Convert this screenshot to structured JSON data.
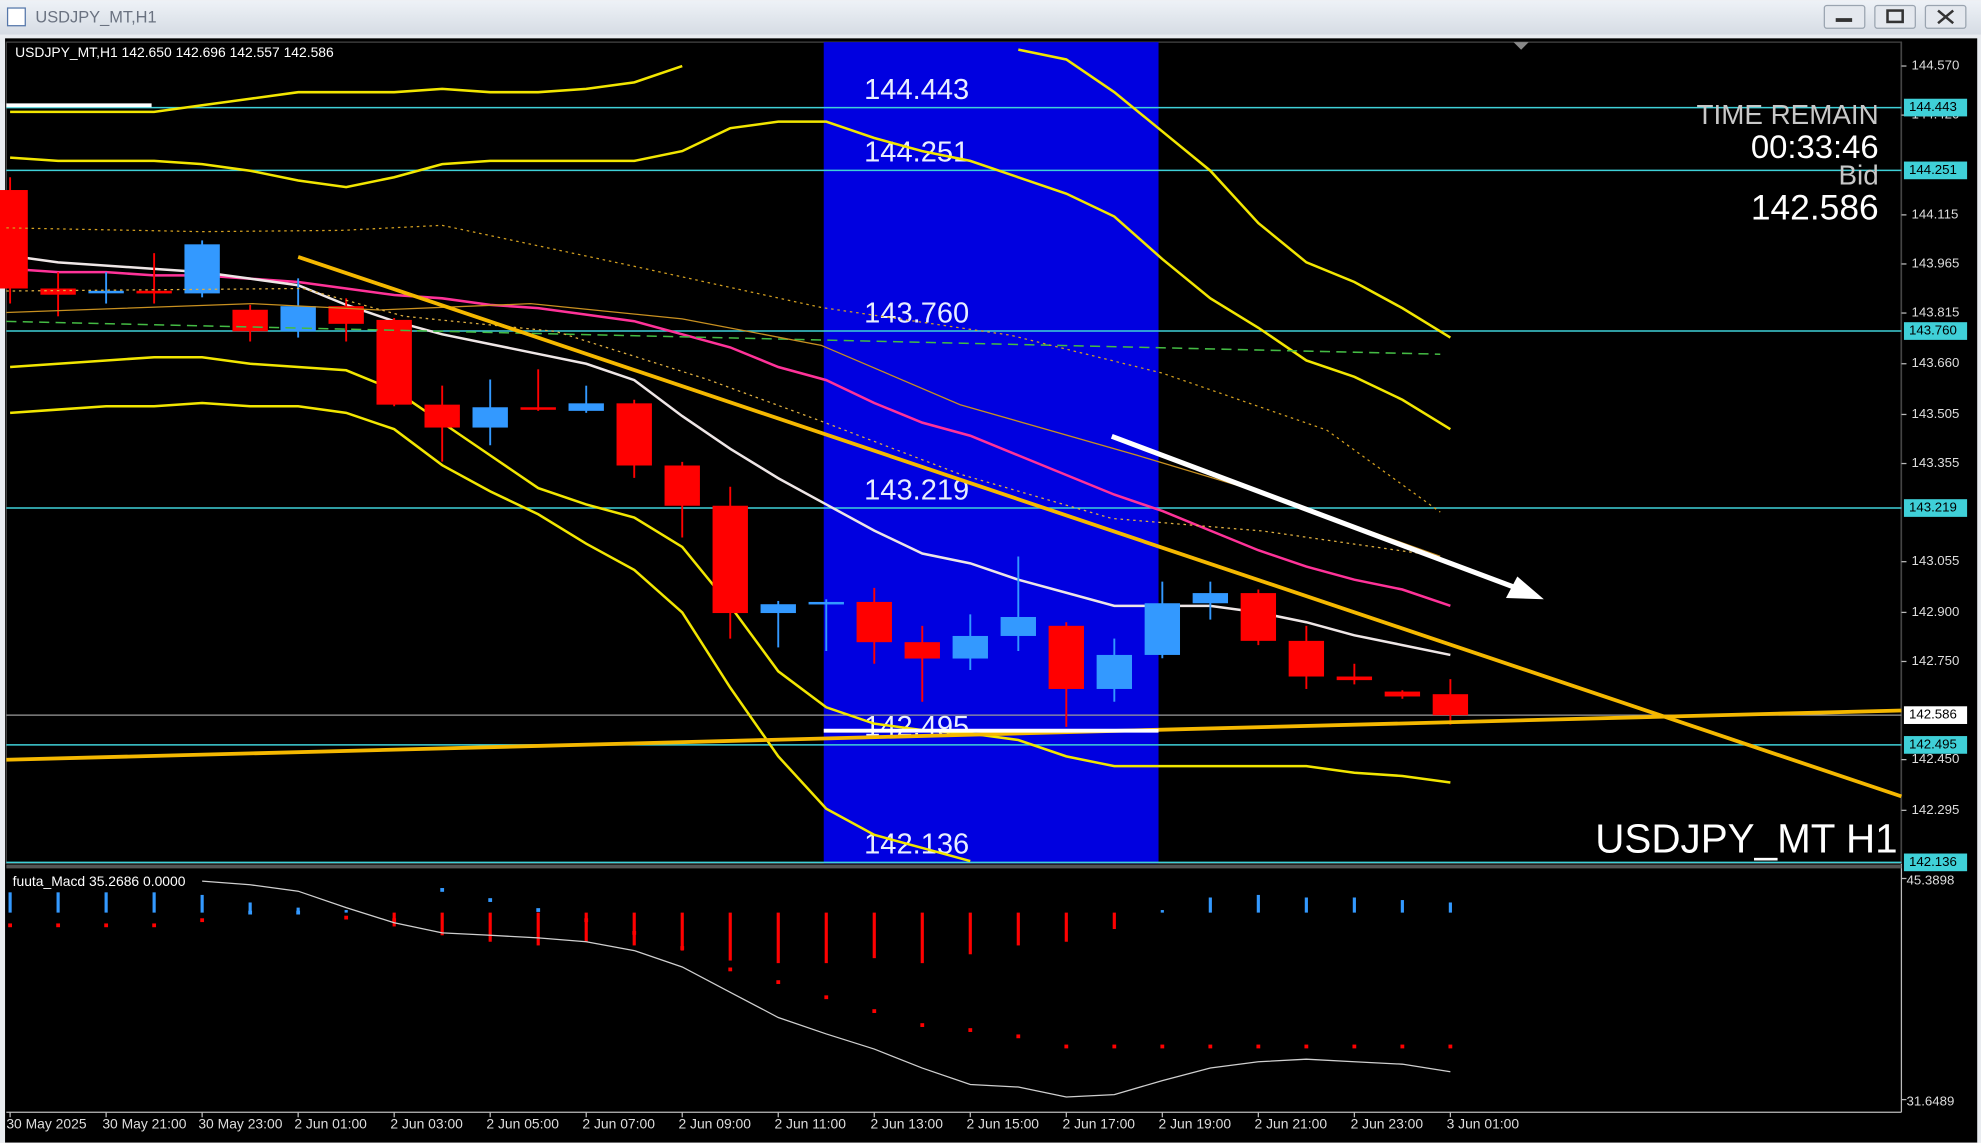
{
  "window": {
    "title": "USDJPY_MT,H1"
  },
  "chart_data": {
    "type": "candlestick",
    "info": "USDJPY_MT,H1  142.650 142.696 142.557 142.586",
    "categories": [
      "30 May 2025",
      null,
      "30 May 21:00",
      null,
      "30 May 23:00",
      null,
      "2 Jun 01:00",
      null,
      "2 Jun 03:00",
      null,
      "2 Jun 05:00",
      null,
      "2 Jun 07:00",
      null,
      "2 Jun 09:00",
      null,
      "2 Jun 11:00",
      null,
      "2 Jun 13:00",
      null,
      "2 Jun 15:00",
      null,
      "2 Jun 17:00",
      null,
      "2 Jun 19:00",
      null,
      "2 Jun 21:00",
      null,
      "2 Jun 23:00",
      null,
      "3 Jun 01:00"
    ],
    "open": [
      144.191,
      143.89,
      143.879,
      143.883,
      143.875,
      143.825,
      143.759,
      143.836,
      143.794,
      143.535,
      143.465,
      143.527,
      143.516,
      143.539,
      143.349,
      143.226,
      142.898,
      142.925,
      142.932,
      142.809,
      142.759,
      142.828,
      142.859,
      142.666,
      142.77,
      142.928,
      142.959,
      142.813,
      142.704,
      142.658,
      142.65
    ],
    "high": [
      144.23,
      143.94,
      143.94,
      143.998,
      144.037,
      143.84,
      143.921,
      143.86,
      143.8,
      143.593,
      143.612,
      143.643,
      143.593,
      143.55,
      143.36,
      143.284,
      142.935,
      142.94,
      142.975,
      142.859,
      142.894,
      143.071,
      142.87,
      142.82,
      142.994,
      142.994,
      142.97,
      142.859,
      142.743,
      142.662,
      142.696
    ],
    "low": [
      143.844,
      143.805,
      143.844,
      143.844,
      143.863,
      143.728,
      143.74,
      143.728,
      143.53,
      143.361,
      143.411,
      143.516,
      143.51,
      143.311,
      143.129,
      142.82,
      142.793,
      142.782,
      142.743,
      142.627,
      142.724,
      142.782,
      142.55,
      142.627,
      142.76,
      142.878,
      142.8,
      142.666,
      142.68,
      142.636,
      142.557
    ],
    "close": [
      143.89,
      143.871,
      143.883,
      143.875,
      144.025,
      143.759,
      143.836,
      143.782,
      143.535,
      143.465,
      143.527,
      143.523,
      143.539,
      143.349,
      143.226,
      142.898,
      142.925,
      142.932,
      142.809,
      142.759,
      142.828,
      142.886,
      142.666,
      142.77,
      142.928,
      142.959,
      142.813,
      142.704,
      142.693,
      142.643,
      142.586
    ],
    "up_color": "#3399ff",
    "down_color": "#ff0000",
    "ylim": [
      142.133,
      144.643
    ],
    "yticks": [
      {
        "value": 144.57,
        "label": "144.570"
      },
      {
        "value": 144.42,
        "label": "144.420"
      },
      144.115,
      143.965,
      143.815,
      {
        "value": 143.66,
        "label": "143.660"
      },
      143.505,
      143.355,
      143.055,
      {
        "value": 142.9,
        "label": "142.900"
      },
      {
        "value": 142.75,
        "label": "142.750"
      },
      {
        "value": 142.45,
        "label": "142.450"
      },
      142.295
    ],
    "levels": [
      144.443,
      144.251,
      {
        "value": 143.76,
        "label": "143.760"
      },
      143.219,
      142.495,
      142.136
    ],
    "level_color": "#3fd0d8",
    "bid": 142.586,
    "time_remain_label": "TIME REMAIN",
    "time_remain": "00:33:46",
    "bid_label": "Bid",
    "watermark": "USDJPY_MT H1",
    "bands": [
      {
        "color": "#f2e600",
        "values": [
          144.43,
          144.43,
          144.43,
          144.43,
          144.45,
          144.47,
          144.49,
          144.49,
          144.49,
          144.5,
          144.49,
          144.49,
          144.5,
          144.52,
          144.57,
          null,
          null,
          null,
          null,
          null,
          null,
          144.62,
          144.59,
          144.49,
          144.37,
          144.25,
          144.09,
          143.97,
          143.91,
          143.83,
          143.74
        ]
      },
      {
        "color": "#f2e600",
        "values": [
          144.29,
          144.28,
          144.28,
          144.28,
          144.27,
          144.25,
          144.22,
          144.2,
          144.23,
          144.27,
          144.28,
          144.28,
          144.28,
          144.28,
          144.31,
          144.38,
          144.4,
          144.4,
          144.35,
          144.31,
          144.28,
          144.23,
          144.18,
          144.11,
          143.98,
          143.86,
          143.77,
          143.67,
          143.62,
          143.55,
          143.46
        ]
      },
      {
        "color": "#f2e600",
        "values": [
          143.65,
          143.66,
          143.67,
          143.68,
          143.68,
          143.66,
          143.65,
          143.64,
          143.58,
          143.48,
          143.38,
          143.28,
          143.23,
          143.19,
          143.1,
          142.92,
          142.72,
          142.61,
          142.56,
          142.54,
          142.53,
          142.51,
          142.46,
          142.43,
          142.43,
          142.43,
          142.43,
          142.43,
          142.41,
          142.4,
          142.38
        ]
      },
      {
        "color": "#f2e600",
        "values": [
          143.51,
          143.52,
          143.53,
          143.53,
          143.54,
          143.53,
          143.53,
          143.51,
          143.46,
          143.35,
          143.27,
          143.2,
          143.11,
          143.03,
          142.9,
          142.67,
          142.46,
          142.3,
          142.22,
          142.18,
          142.14,
          null,
          null,
          null,
          null,
          null,
          null,
          null,
          null,
          null,
          null
        ]
      },
      {
        "color": "#ff3399",
        "values": [
          143.95,
          143.94,
          143.94,
          143.93,
          143.93,
          143.92,
          143.91,
          143.89,
          143.87,
          143.86,
          143.84,
          143.83,
          143.81,
          143.79,
          143.75,
          143.71,
          143.65,
          143.61,
          143.54,
          143.48,
          143.44,
          143.38,
          143.32,
          143.26,
          143.21,
          143.15,
          143.09,
          143.04,
          143.0,
          142.97,
          142.92
        ]
      },
      {
        "color": "#eee6e6",
        "values": [
          143.99,
          143.97,
          143.96,
          143.95,
          143.94,
          143.92,
          143.9,
          143.84,
          143.79,
          143.75,
          143.72,
          143.69,
          143.66,
          143.61,
          143.5,
          143.4,
          143.31,
          143.23,
          143.15,
          143.08,
          143.05,
          143.0,
          142.96,
          142.92,
          142.92,
          142.92,
          142.9,
          142.87,
          142.83,
          142.8,
          142.77
        ]
      }
    ],
    "macd": {
      "label": "fuuta_Macd 35.2686  0.0000",
      "ylim": [
        31.6489,
        45.3898
      ],
      "yticks": [
        45.3898,
        31.6489
      ],
      "histogram": [
        44.53,
        44.53,
        44.53,
        44.53,
        44.37,
        43.9,
        43.58,
        43.43,
        42.41,
        41.86,
        41.46,
        41.23,
        41.46,
        41.23,
        40.91,
        40.29,
        40.13,
        40.13,
        40.44,
        40.13,
        40.68,
        41.23,
        41.46,
        42.25,
        43.43,
        44.21,
        44.37,
        44.21,
        44.21,
        44.05,
        43.9
      ],
      "signal": [
        42.48,
        42.48,
        42.48,
        42.48,
        42.8,
        43.27,
        43.27,
        42.96,
        42.8,
        44.68,
        44.05,
        43.43,
        42.8,
        42.01,
        41.07,
        39.74,
        38.95,
        38.01,
        37.15,
        36.28,
        35.97,
        35.58,
        34.95,
        34.95,
        34.95,
        34.95,
        34.95,
        34.95,
        34.95,
        34.95,
        34.95
      ],
      "line": [
        null,
        null,
        null,
        null,
        45.23,
        45.0,
        44.6,
        43.58,
        42.64,
        42.01,
        41.86,
        41.7,
        41.46,
        40.91,
        39.89,
        38.32,
        36.75,
        35.73,
        34.79,
        33.61,
        32.59,
        32.43,
        31.81,
        31.96,
        32.83,
        33.61,
        34.0,
        34.16,
        34.0,
        33.85,
        33.38
      ],
      "line_color": "#cfcfcf"
    }
  }
}
